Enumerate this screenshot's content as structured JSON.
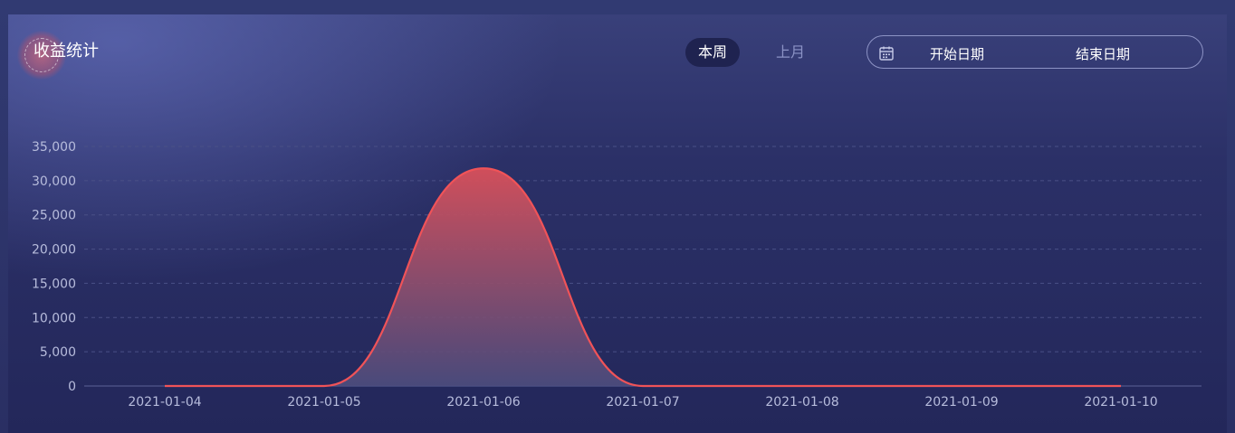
{
  "header": {
    "title": "收益统计",
    "tabs": [
      {
        "label": "本周",
        "active": true
      },
      {
        "label": "上月",
        "active": false
      }
    ],
    "date_range": {
      "start_placeholder": "开始日期",
      "end_placeholder": "结束日期"
    }
  },
  "icons": {
    "calendar": "calendar-icon"
  },
  "colors": {
    "line": "#f05358",
    "area_top": "#d9505a",
    "area_bottom": "#4d4d7e",
    "grid": "#4a5086",
    "axis_text": "#b7bcdc"
  },
  "chart_data": {
    "type": "area",
    "smooth": true,
    "categories": [
      "2021-01-04",
      "2021-01-05",
      "2021-01-06",
      "2021-01-07",
      "2021-01-08",
      "2021-01-09",
      "2021-01-10"
    ],
    "values": [
      0,
      0,
      31800,
      0,
      0,
      0,
      0
    ],
    "title": "",
    "xlabel": "",
    "ylabel": "",
    "ylim": [
      0,
      35000
    ],
    "yticks": [
      "0",
      "5,000",
      "10,000",
      "15,000",
      "20,000",
      "25,000",
      "30,000",
      "35,000"
    ],
    "grid": true,
    "legend": "none"
  }
}
